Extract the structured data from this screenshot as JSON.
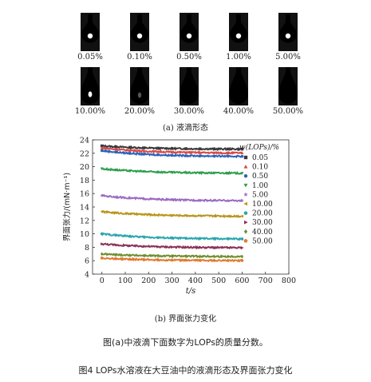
{
  "figure": {
    "panel_a_caption": "(a)  液滴形态",
    "panel_b_caption": "(b) 界面张力变化",
    "note": "图(a)中液滴下面数字为LOPs的质量分数。",
    "caption": "图4  LOPs水溶液在大豆油中的液滴形态及界面张力变化"
  },
  "droplets": [
    {
      "label": "0.05%",
      "shape": "round",
      "spot": "white-hole"
    },
    {
      "label": "0.10%",
      "shape": "round",
      "spot": "white-hole"
    },
    {
      "label": "0.50%",
      "shape": "round",
      "spot": "white-hole"
    },
    {
      "label": "1.00%",
      "shape": "round",
      "spot": "white-hole"
    },
    {
      "label": "5.00%",
      "shape": "round",
      "spot": "white-hole"
    },
    {
      "label": "10.00%",
      "shape": "pear",
      "spot": "bright"
    },
    {
      "label": "20.00%",
      "shape": "pear",
      "spot": "faint"
    },
    {
      "label": "30.00%",
      "shape": "pear",
      "spot": "none"
    },
    {
      "label": "40.00%",
      "shape": "pear",
      "spot": "none"
    },
    {
      "label": "50.00%",
      "shape": "pear",
      "spot": "none"
    }
  ],
  "chart_data": {
    "type": "scatter",
    "title": "",
    "xlabel": "t/s",
    "ylabel": "界面张力/(mN·m⁻¹)",
    "xlim": [
      -40,
      800
    ],
    "ylim": [
      4,
      24
    ],
    "xticks": [
      0,
      100,
      200,
      300,
      400,
      500,
      600,
      700,
      800
    ],
    "yticks": [
      4,
      6,
      8,
      10,
      12,
      14,
      16,
      18,
      20,
      22,
      24
    ],
    "legend_title": "w(LOPs)/%",
    "legend_position": "right",
    "series": [
      {
        "name": "0.05",
        "marker": "square",
        "color": "#3a3a3a",
        "start": 23.1,
        "end": 22.6
      },
      {
        "name": "0.10",
        "marker": "triangle-up",
        "color": "#d94848",
        "start": 22.8,
        "end": 22.0
      },
      {
        "name": "0.50",
        "marker": "circle",
        "color": "#2a63b8",
        "start": 22.4,
        "end": 21.5
      },
      {
        "name": "1.00",
        "marker": "triangle-down",
        "color": "#2e9e4e",
        "start": 19.7,
        "end": 19.0
      },
      {
        "name": "5.00",
        "marker": "star",
        "color": "#9b6bc0",
        "start": 15.7,
        "end": 14.9
      },
      {
        "name": "10.00",
        "marker": "triangle-left",
        "color": "#b8961e",
        "start": 13.3,
        "end": 12.6
      },
      {
        "name": "20.00",
        "marker": "hexagon",
        "color": "#2aa6b0",
        "start": 10.0,
        "end": 9.2
      },
      {
        "name": "30.00",
        "marker": "triangle-right",
        "color": "#8a3055",
        "start": 8.5,
        "end": 7.9
      },
      {
        "name": "40.00",
        "marker": "diamond",
        "color": "#6f8f30",
        "start": 7.0,
        "end": 6.6
      },
      {
        "name": "50.00",
        "marker": "pentagon",
        "color": "#e07a30",
        "start": 6.4,
        "end": 6.0
      }
    ]
  }
}
